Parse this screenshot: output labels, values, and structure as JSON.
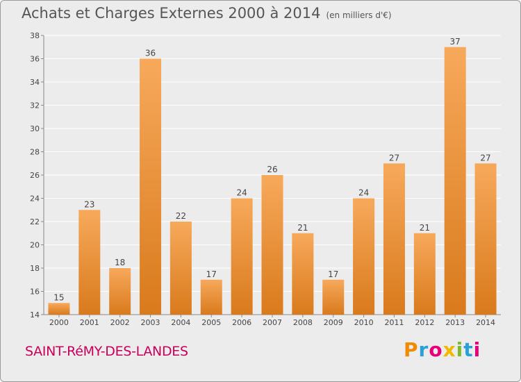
{
  "header": {
    "title": "Achats et Charges Externes 2000 à 2014",
    "unit": "(en milliers d'€)"
  },
  "footer": {
    "place": "SAINT-RéMY-DES-LANDES",
    "logo": "Proxiti",
    "logo_colors": [
      "#f08a00",
      "#2aa0d8",
      "#e8007a",
      "#f0b800",
      "#7dbb2a",
      "#2aa0d8",
      "#e8007a"
    ]
  },
  "colors": {
    "bar_light": "#f7a95b",
    "bar_dark": "#d97a1c",
    "grid": "#ffffff",
    "background": "#ececec"
  },
  "chart_data": {
    "type": "bar",
    "categories": [
      "2000",
      "2001",
      "2002",
      "2003",
      "2004",
      "2005",
      "2006",
      "2007",
      "2008",
      "2009",
      "2010",
      "2011",
      "2012",
      "2013",
      "2014"
    ],
    "values": [
      15,
      23,
      18,
      36,
      22,
      17,
      24,
      26,
      21,
      17,
      24,
      27,
      21,
      37,
      27
    ],
    "ylim": [
      14,
      38
    ],
    "yticks": [
      14,
      16,
      18,
      20,
      22,
      24,
      26,
      28,
      30,
      32,
      34,
      36,
      38
    ],
    "grid": true
  }
}
